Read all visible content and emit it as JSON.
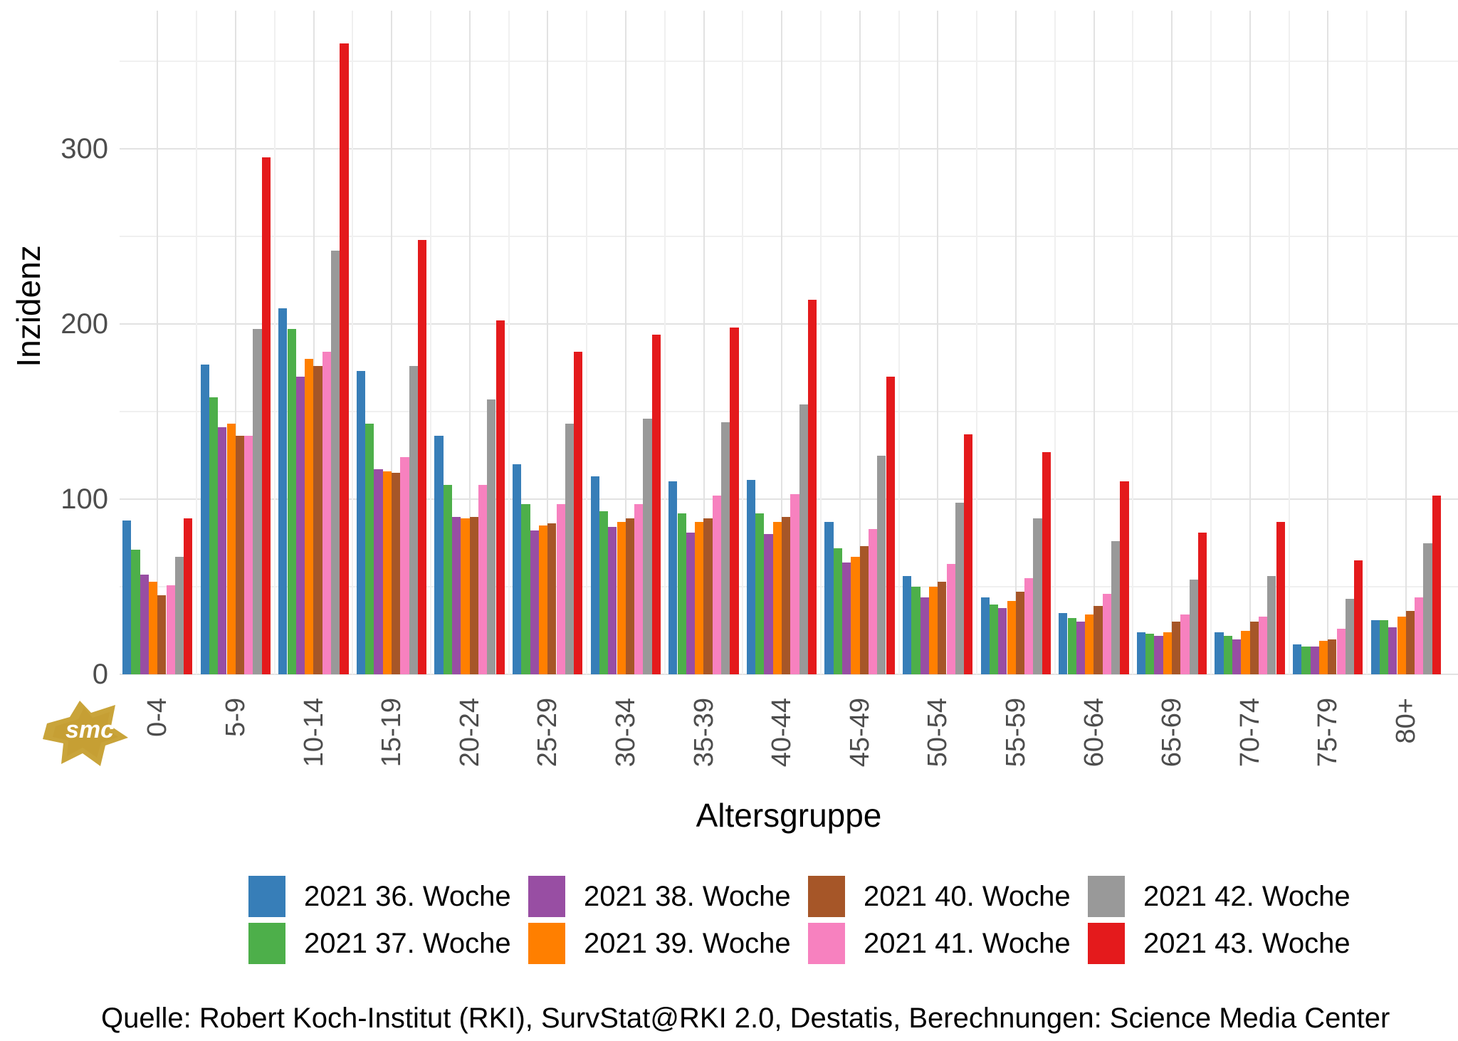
{
  "page": {
    "background": "#ffffff"
  },
  "chart_data": {
    "type": "bar",
    "title": "",
    "xlabel": "Altersgruppe",
    "ylabel": "Inzidenz",
    "categories": [
      "0-4",
      "5-9",
      "10-14",
      "15-19",
      "20-24",
      "25-29",
      "30-34",
      "35-39",
      "40-44",
      "45-49",
      "50-54",
      "55-59",
      "60-64",
      "65-69",
      "70-74",
      "75-79",
      "80+"
    ],
    "series": [
      {
        "name": "2021 36. Woche",
        "color": "#377EB8",
        "values": [
          88,
          177,
          209,
          173,
          136,
          120,
          113,
          110,
          111,
          87,
          56,
          44,
          35,
          24,
          24,
          17,
          31
        ]
      },
      {
        "name": "2021 37. Woche",
        "color": "#4DAF4A",
        "values": [
          71,
          158,
          197,
          143,
          108,
          97,
          93,
          92,
          92,
          72,
          50,
          40,
          32,
          23,
          22,
          16,
          31
        ]
      },
      {
        "name": "2021 38. Woche",
        "color": "#984EA3",
        "values": [
          57,
          141,
          170,
          117,
          90,
          82,
          84,
          81,
          80,
          64,
          44,
          38,
          30,
          22,
          20,
          16,
          27
        ]
      },
      {
        "name": "2021 39. Woche",
        "color": "#FF7F00",
        "values": [
          53,
          143,
          180,
          116,
          89,
          85,
          87,
          87,
          87,
          67,
          50,
          42,
          34,
          24,
          25,
          19,
          33
        ]
      },
      {
        "name": "2021 40. Woche",
        "color": "#A65628",
        "values": [
          45,
          136,
          176,
          115,
          90,
          86,
          89,
          89,
          90,
          73,
          53,
          47,
          39,
          30,
          30,
          20,
          36
        ]
      },
      {
        "name": "2021 41. Woche",
        "color": "#F781BF",
        "values": [
          51,
          136,
          184,
          124,
          108,
          97,
          97,
          102,
          103,
          83,
          63,
          55,
          46,
          34,
          33,
          26,
          44
        ]
      },
      {
        "name": "2021 42. Woche",
        "color": "#999999",
        "values": [
          67,
          197,
          242,
          176,
          157,
          143,
          146,
          144,
          154,
          125,
          98,
          89,
          76,
          54,
          56,
          43,
          75
        ]
      },
      {
        "name": "2021 43. Woche",
        "color": "#E41A1C",
        "values": [
          89,
          295,
          360,
          248,
          202,
          184,
          194,
          198,
          214,
          170,
          137,
          127,
          110,
          81,
          87,
          65,
          102
        ]
      }
    ],
    "ylim": [
      0,
      379
    ],
    "yticks": [
      0,
      100,
      200,
      300
    ],
    "grid": "major and minor horizontal and vertical gridlines, light gray",
    "legend_position": "bottom"
  },
  "footer": {
    "source": "Quelle: Robert Koch-Institut (RKI), SurvStat@RKI 2.0, Destatis, Berechnungen: Science Media Center"
  },
  "logo": {
    "text": "smc",
    "color": "#C9A43A"
  }
}
